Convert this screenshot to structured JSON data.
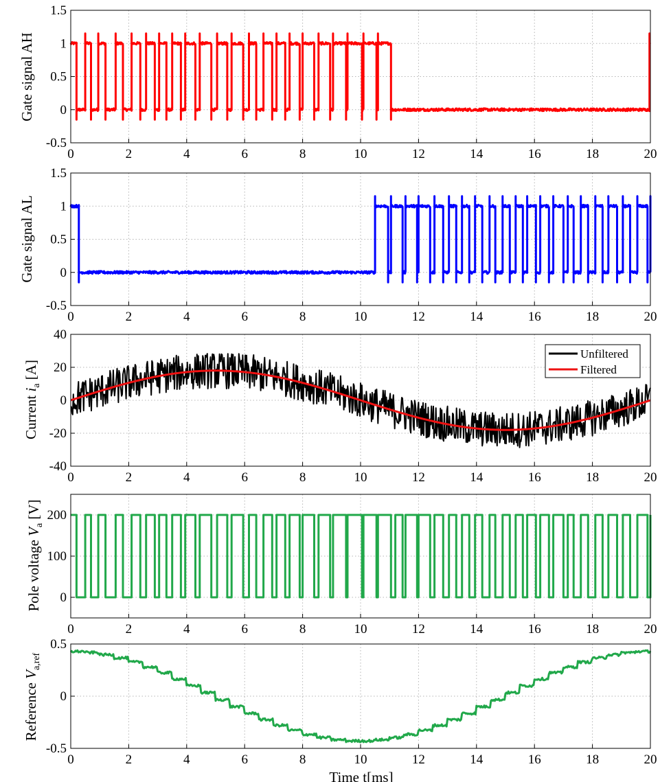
{
  "chart_data": [
    {
      "type": "line",
      "ylabel": "Gate signal AH",
      "xlabel": "",
      "xlim": [
        0,
        20
      ],
      "ylim": [
        -0.5,
        1.5
      ],
      "xticks": [
        "0",
        "2",
        "4",
        "6",
        "8",
        "10",
        "12",
        "14",
        "16",
        "18",
        "20"
      ],
      "yticks": [
        "-0.5",
        "0",
        "0.5",
        "1",
        "1.5"
      ],
      "grid": true,
      "series": [
        {
          "name": "Gate signal AH",
          "color": "#ff0000",
          "signal": "pwm",
          "high": 1,
          "low": 0,
          "noise": 0.02,
          "overshoot": 0.15,
          "transitions": [
            0,
            0.2,
            0.5,
            0.7,
            0.95,
            1.2,
            1.55,
            1.8,
            2.1,
            2.4,
            2.6,
            2.9,
            3.05,
            3.3,
            3.5,
            3.8,
            3.95,
            4.3,
            4.45,
            4.85,
            5.05,
            5.4,
            5.55,
            5.95,
            6.15,
            6.4,
            6.65,
            6.95,
            7.1,
            7.4,
            7.55,
            7.9,
            8.0,
            8.4,
            8.55,
            8.95,
            9.05,
            9.5,
            9.55,
            10.05,
            10.1,
            10.55,
            10.6,
            11.05,
            19.97
          ]
        }
      ]
    },
    {
      "type": "line",
      "ylabel": "Gate signal AL",
      "xlabel": "",
      "xlim": [
        0,
        20
      ],
      "ylim": [
        -0.5,
        1.5
      ],
      "xticks": [
        "0",
        "2",
        "4",
        "6",
        "8",
        "10",
        "12",
        "14",
        "16",
        "18",
        "20"
      ],
      "yticks": [
        "-0.5",
        "0",
        "0.5",
        "1",
        "1.5"
      ],
      "grid": true,
      "series": [
        {
          "name": "Gate signal AL",
          "color": "#0000ff",
          "signal": "pwm",
          "high": 1,
          "low": 0,
          "noise": 0.02,
          "overshoot": 0.15,
          "transitions": [
            0,
            0.28,
            10.5,
            10.95,
            11.05,
            11.45,
            11.55,
            11.95,
            12.0,
            12.4,
            12.55,
            12.85,
            13.05,
            13.3,
            13.5,
            13.75,
            13.95,
            14.2,
            14.45,
            14.65,
            14.9,
            15.15,
            15.35,
            15.6,
            15.75,
            16.05,
            16.2,
            16.5,
            16.65,
            17.0,
            17.15,
            17.35,
            17.6,
            17.85,
            18.1,
            18.35,
            18.55,
            18.85,
            19.05,
            19.3,
            19.55,
            19.9,
            20.0
          ]
        }
      ]
    },
    {
      "type": "line",
      "ylabel": "Current i_a [A]",
      "xlabel": "",
      "xlim": [
        0,
        20
      ],
      "ylim": [
        -40,
        40
      ],
      "xticks": [
        "0",
        "2",
        "4",
        "6",
        "8",
        "10",
        "12",
        "14",
        "16",
        "18",
        "20"
      ],
      "yticks": [
        "-40",
        "-20",
        "0",
        "20",
        "40"
      ],
      "grid": true,
      "legend": {
        "position": "top-right",
        "entries": [
          "Unfiltered",
          "Filtered"
        ]
      },
      "series": [
        {
          "name": "Unfiltered",
          "color": "#000000",
          "signal": "noisy_sine",
          "amplitude": 18,
          "period": 20,
          "ripple": 11
        },
        {
          "name": "Filtered",
          "color": "#ee1111",
          "signal": "sine",
          "amplitude": 18,
          "period": 20
        }
      ]
    },
    {
      "type": "line",
      "ylabel": "Pole voltage V_a [V]",
      "xlabel": "",
      "xlim": [
        0,
        20
      ],
      "ylim": [
        -50,
        250
      ],
      "xticks": [
        "0",
        "2",
        "4",
        "6",
        "8",
        "10",
        "12",
        "14",
        "16",
        "18",
        "20"
      ],
      "yticks": [
        "0",
        "100",
        "200"
      ],
      "grid": true,
      "series": [
        {
          "name": "Pole voltage",
          "color": "#21a84a",
          "signal": "pwm",
          "high": 200,
          "low": 0,
          "noise": 0,
          "overshoot": 0,
          "transitions": [
            0,
            0.2,
            0.5,
            0.7,
            0.95,
            1.2,
            1.55,
            1.8,
            2.1,
            2.4,
            2.6,
            2.9,
            3.05,
            3.3,
            3.5,
            3.8,
            3.95,
            4.3,
            4.45,
            4.85,
            5.05,
            5.4,
            5.55,
            5.95,
            6.15,
            6.4,
            6.65,
            6.95,
            7.1,
            7.4,
            7.55,
            7.9,
            8.0,
            8.4,
            8.55,
            8.95,
            9.05,
            9.5,
            9.55,
            10.05,
            10.1,
            10.55,
            10.6,
            11.05,
            11.2,
            11.45,
            11.55,
            11.95,
            12.0,
            12.4,
            12.55,
            12.85,
            13.05,
            13.3,
            13.5,
            13.75,
            13.95,
            14.2,
            14.45,
            14.65,
            14.9,
            15.15,
            15.35,
            15.6,
            15.75,
            16.05,
            16.2,
            16.5,
            16.65,
            17.0,
            17.15,
            17.35,
            17.6,
            17.85,
            18.1,
            18.35,
            18.55,
            18.85,
            19.05,
            19.3,
            19.55,
            19.9,
            20.0
          ]
        }
      ]
    },
    {
      "type": "line",
      "ylabel": "Reference V_a,ref",
      "xlabel": "Time t[ms]",
      "xlim": [
        0,
        20
      ],
      "ylim": [
        -0.5,
        0.5
      ],
      "xticks": [
        "0",
        "2",
        "4",
        "6",
        "8",
        "10",
        "12",
        "14",
        "16",
        "18",
        "20"
      ],
      "yticks": [
        "-0.5",
        "0",
        "0.5"
      ],
      "grid": true,
      "series": [
        {
          "name": "Reference",
          "color": "#21a84a",
          "signal": "stepped_cosine",
          "amplitude": 0.43,
          "period": 20,
          "step": 0.5,
          "noise": 0.012
        }
      ]
    }
  ],
  "labels": {
    "panel1_ylabel": "Gate signal AH",
    "panel2_ylabel": "Gate signal AL",
    "panel3_ylabel_main": "Current ",
    "panel3_ylabel_sym": "i",
    "panel3_ylabel_sub": "a",
    "panel3_ylabel_unit": " [A]",
    "panel4_ylabel_main": "Pole voltage ",
    "panel4_ylabel_sym": "V",
    "panel4_ylabel_sub": "a",
    "panel4_ylabel_unit": " [V]",
    "panel5_ylabel_main": "Reference ",
    "panel5_ylabel_sym": "V",
    "panel5_ylabel_sub": "a,ref",
    "xlabel": "Time t[ms]",
    "legend_unfiltered": "Unfiltered",
    "legend_filtered": "Filtered"
  }
}
